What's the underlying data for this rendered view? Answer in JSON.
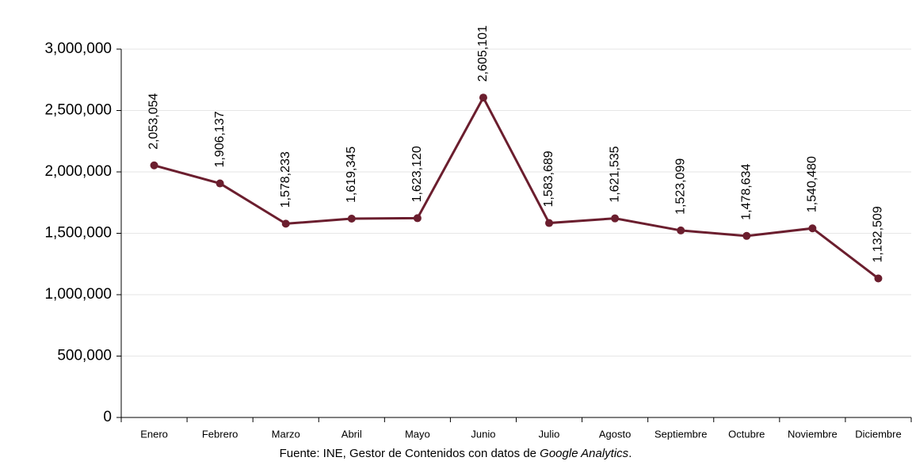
{
  "chart_data": {
    "type": "line",
    "categories": [
      "Enero",
      "Febrero",
      "Marzo",
      "Abril",
      "Mayo",
      "Junio",
      "Julio",
      "Agosto",
      "Septiembre",
      "Octubre",
      "Noviembre",
      "Diciembre"
    ],
    "series": [
      {
        "color": "#6b1e2e",
        "values": [
          2053054,
          1906137,
          1578233,
          1619345,
          1623120,
          2605101,
          1583689,
          1621535,
          1523099,
          1478634,
          1540480,
          1132509
        ],
        "value_labels": [
          "2,053,054",
          "1,906,137",
          "1,578,233",
          "1,619,345",
          "1,623,120",
          "2,605,101",
          "1,583,689",
          "1,621,535",
          "1,523,099",
          "1,478,634",
          "1,540,480",
          "1,132,509"
        ]
      }
    ],
    "ylim": [
      0,
      3000000
    ],
    "yticks": [
      0,
      {
        "value": 500000,
        "label": "500,000"
      },
      {
        "value": 1000000,
        "label": "1,000,000"
      },
      {
        "value": 1500000,
        "label": "1,500,000"
      },
      {
        "value": 2000000,
        "label": "2,000,000"
      },
      {
        "value": 2500000,
        "label": "2,500,000"
      },
      {
        "value": 3000000,
        "label": "3,000,000"
      }
    ],
    "grid": true,
    "source_text": "Fuente: INE, Gestor de Contenidos con datos de ",
    "source_italic": "Google Analytics",
    "source_end": "."
  }
}
